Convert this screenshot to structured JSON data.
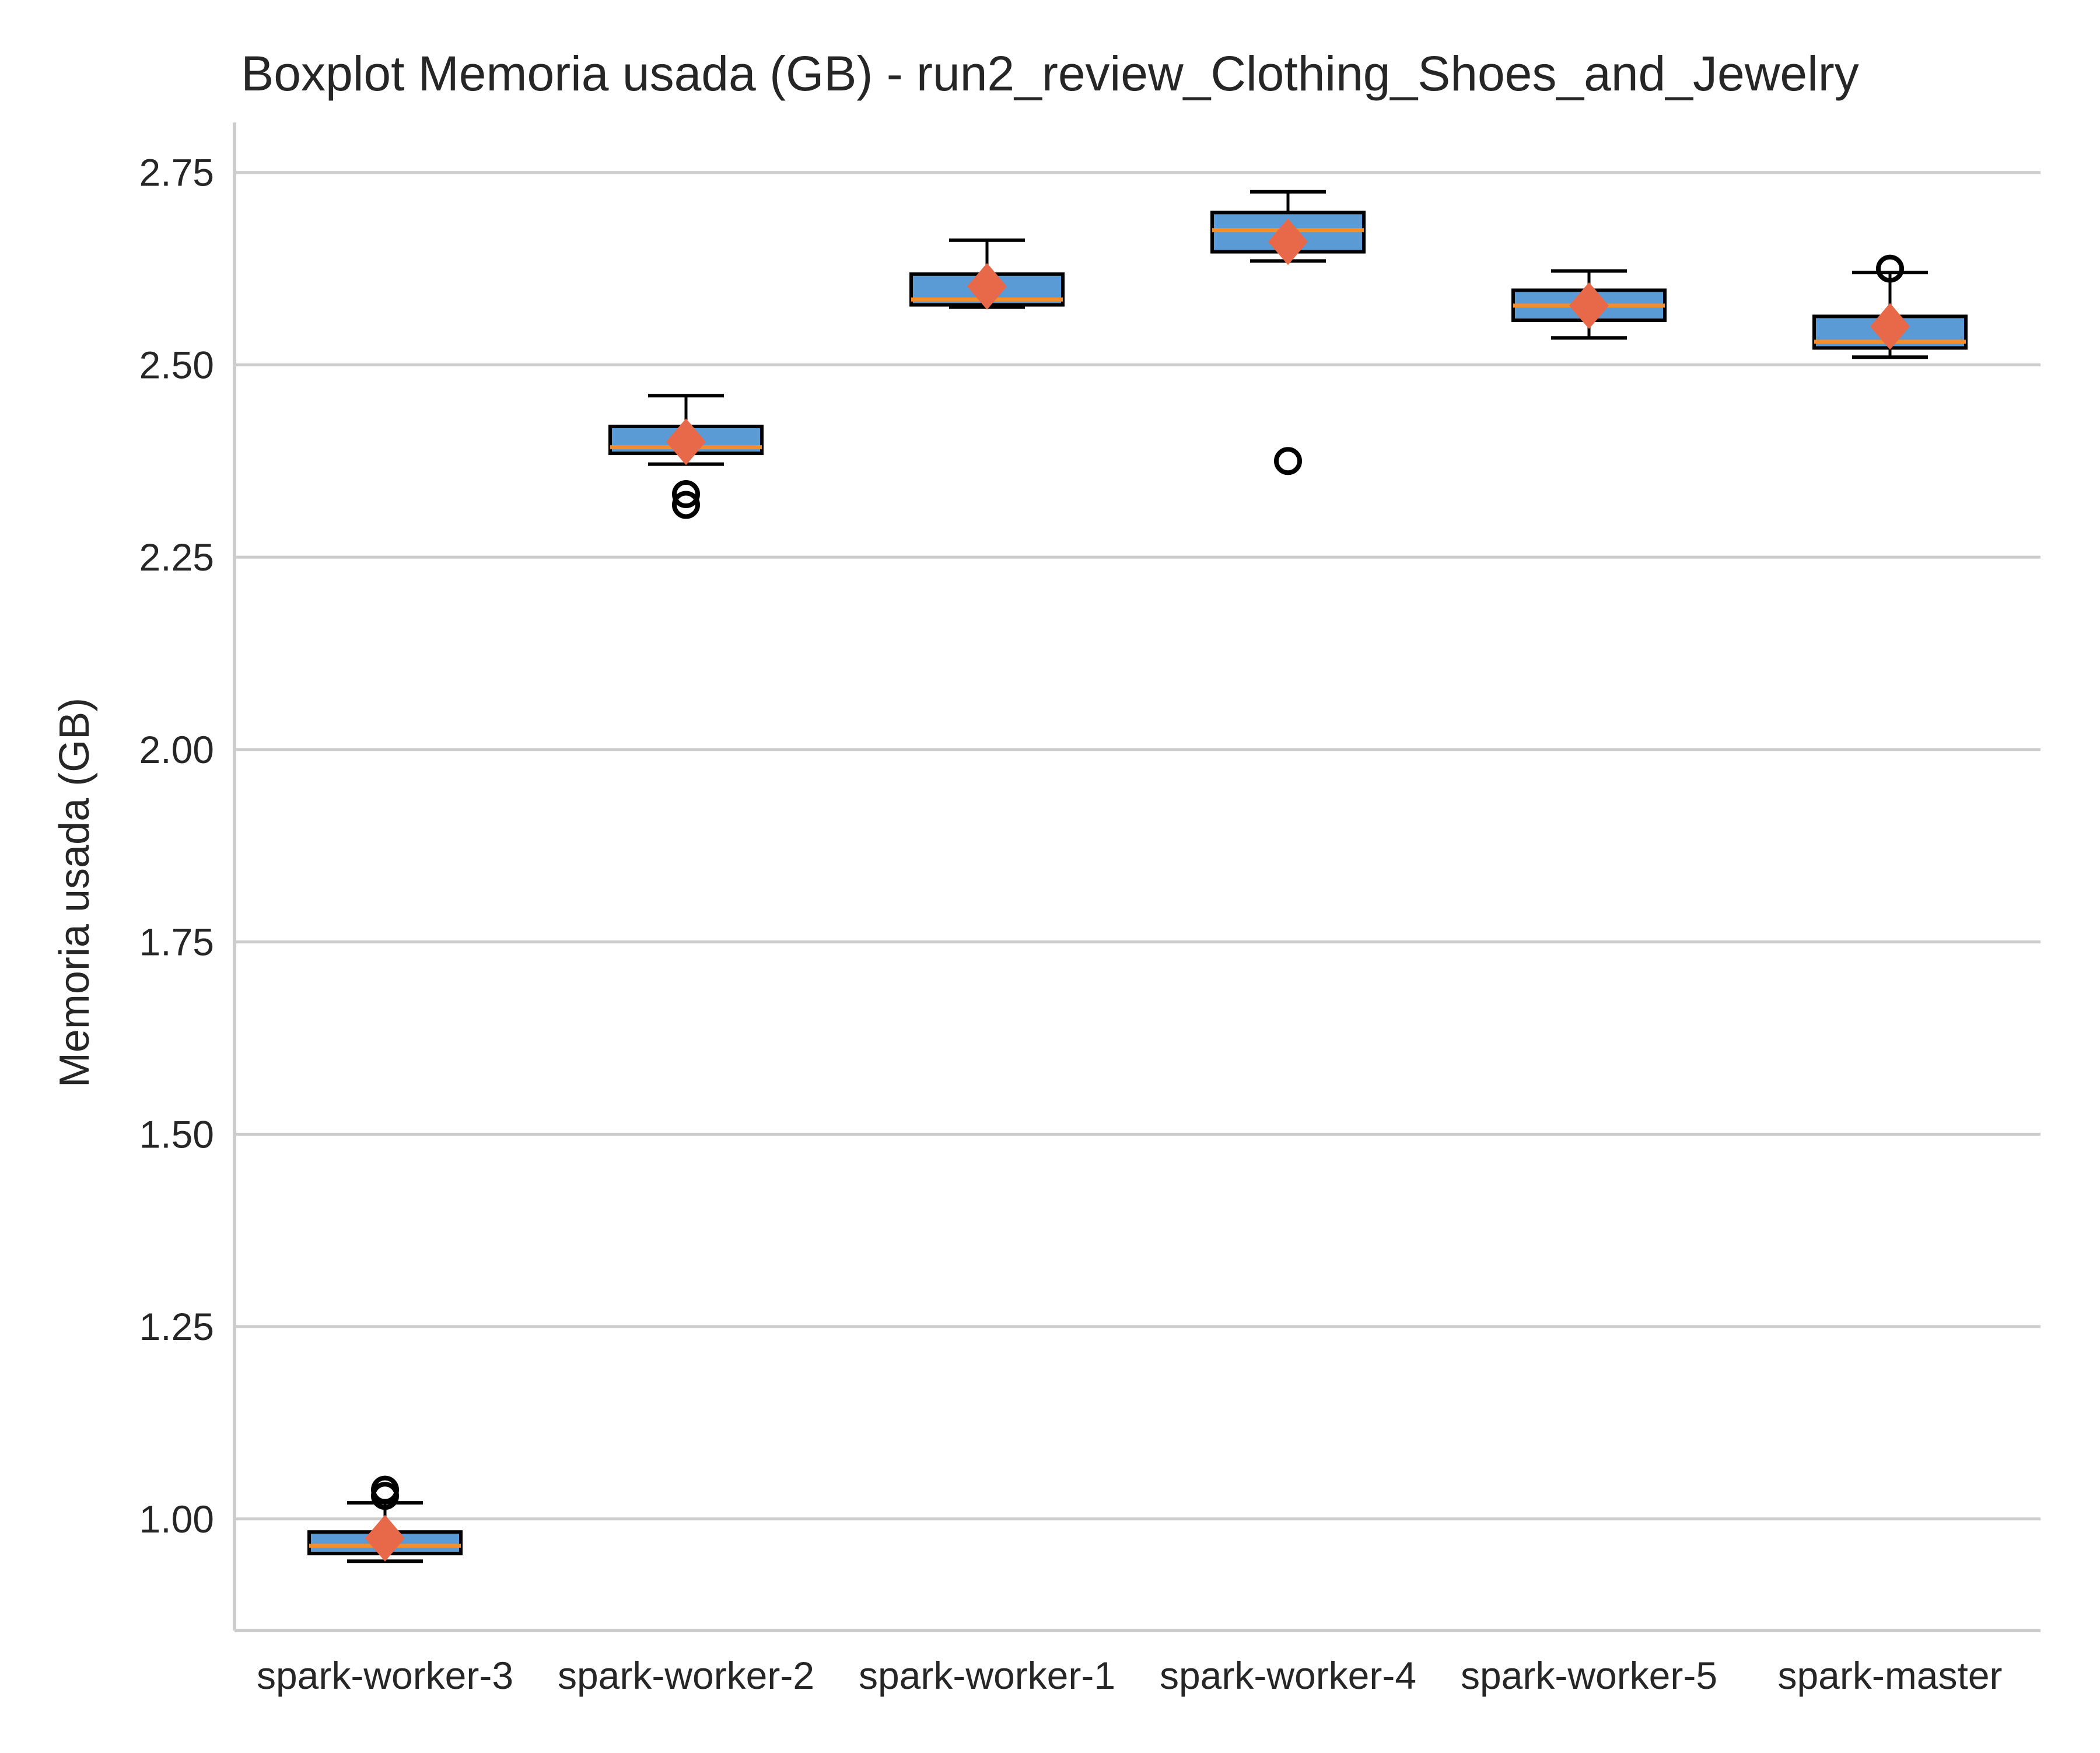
{
  "chart_data": {
    "type": "boxplot",
    "title": "Boxplot Memoria usada (GB) - run2_review_Clothing_Shoes_and_Jewelry",
    "xlabel": "",
    "ylabel": "Memoria usada (GB)",
    "ylim": [
      0.855,
      2.815
    ],
    "yticks": [
      "1.00",
      "1.25",
      "1.50",
      "1.75",
      "2.00",
      "2.25",
      "2.50",
      "2.75"
    ],
    "grid": "horizontal",
    "colors": {
      "box": "#5b9bd5",
      "median": "#f28e2b",
      "mean": "#e8694a",
      "edge": "#000000",
      "grid": "#cccccc",
      "axis": "#cccccc"
    },
    "categories": [
      "spark-worker-3",
      "spark-worker-2",
      "spark-worker-1",
      "spark-worker-4",
      "spark-worker-5",
      "spark-master"
    ],
    "boxes": [
      {
        "whisker_low": 0.945,
        "q1": 0.955,
        "median": 0.965,
        "q3": 0.983,
        "whisker_high": 1.021,
        "mean": 0.975,
        "outliers": [
          1.03,
          1.038
        ]
      },
      {
        "whisker_low": 2.371,
        "q1": 2.385,
        "median": 2.393,
        "q3": 2.42,
        "whisker_high": 2.46,
        "mean": 2.4,
        "outliers": [
          2.318,
          2.332
        ]
      },
      {
        "whisker_low": 2.575,
        "q1": 2.578,
        "median": 2.585,
        "q3": 2.618,
        "whisker_high": 2.662,
        "mean": 2.602,
        "outliers": []
      },
      {
        "whisker_low": 2.635,
        "q1": 2.647,
        "median": 2.675,
        "q3": 2.698,
        "whisker_high": 2.725,
        "mean": 2.66,
        "outliers": [
          2.375
        ]
      },
      {
        "whisker_low": 2.535,
        "q1": 2.558,
        "median": 2.577,
        "q3": 2.597,
        "whisker_high": 2.622,
        "mean": 2.577,
        "outliers": []
      },
      {
        "whisker_low": 2.51,
        "q1": 2.522,
        "median": 2.53,
        "q3": 2.563,
        "whisker_high": 2.62,
        "mean": 2.55,
        "outliers": [
          2.625
        ]
      }
    ]
  }
}
